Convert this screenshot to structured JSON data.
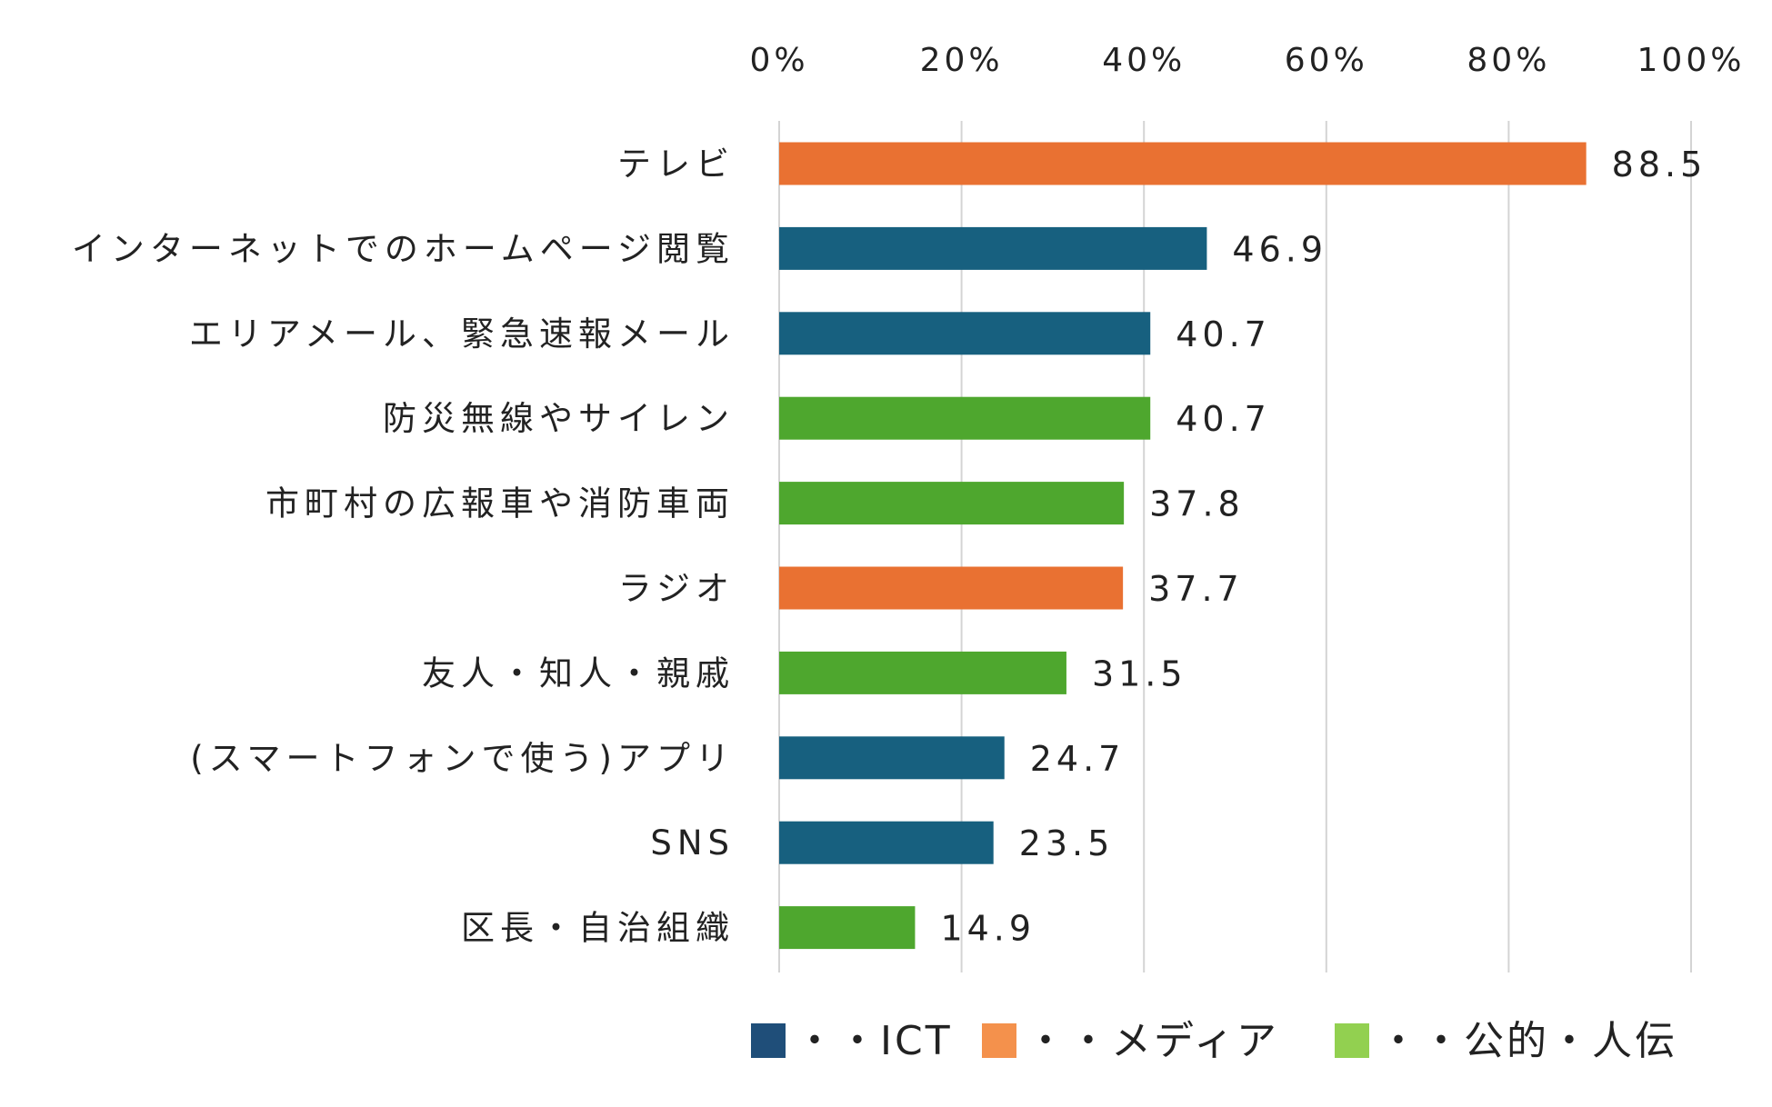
{
  "chart_data": {
    "type": "bar",
    "orientation": "horizontal",
    "categories": [
      "テレビ",
      "インターネットでのホームページ閲覧",
      "エリアメール、緊急速報メール",
      "防災無線やサイレン",
      "市町村の広報車や消防車両",
      "ラジオ",
      "友人・知人・親戚",
      "(スマートフォンで使う)アプリ",
      "SNS",
      "区長・自治組織"
    ],
    "values": [
      88.5,
      46.9,
      40.7,
      40.7,
      37.8,
      37.7,
      31.5,
      24.7,
      23.5,
      14.9
    ],
    "value_labels": [
      "88.5",
      "46.9",
      "40.7",
      "40.7",
      "37.8",
      "37.7",
      "31.5",
      "24.7",
      "23.5",
      "14.9"
    ],
    "groups": [
      "media",
      "ict",
      "ict",
      "public",
      "public",
      "media",
      "public",
      "ict",
      "ict",
      "public"
    ],
    "xlim": [
      0,
      100
    ],
    "x_ticks": [
      "0%",
      "20%",
      "40%",
      "60%",
      "80%",
      "100%"
    ],
    "x_axis_position": "top",
    "grid": true,
    "bar_colors": {
      "ict": "#17607f",
      "media": "#e97132",
      "public": "#4ea72e"
    },
    "legend": {
      "position": "bottom",
      "items": [
        {
          "group": "ict",
          "label": "・・ICT",
          "color": "#1f4e79"
        },
        {
          "group": "media",
          "label": "・・メディア",
          "color": "#f4914c"
        },
        {
          "group": "public",
          "label": "・・公的・人伝",
          "color": "#92d050"
        }
      ]
    }
  }
}
